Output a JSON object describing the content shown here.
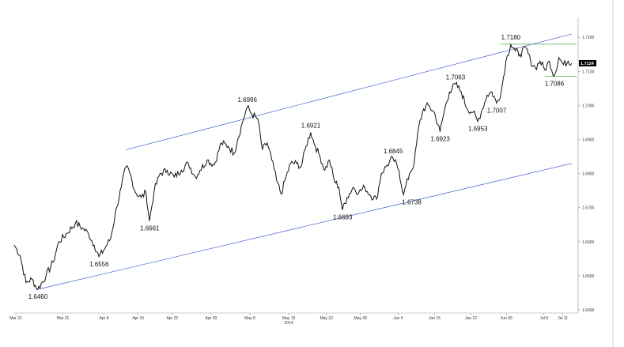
{
  "chart_data": {
    "type": "line",
    "title": "",
    "xlabel": "",
    "ylabel": "",
    "year_label": "2014",
    "ylim": [
      1.64,
      1.724
    ],
    "y_ticks": [
      "1.7200",
      "1.7100",
      "1.7000",
      "1.6900",
      "1.6800",
      "1.6700",
      "1.6600",
      "1.6500",
      "1.6400"
    ],
    "last_price": "1.7124",
    "x_ticks": [
      "Mar 21",
      "Mar 31",
      "Apr 8",
      "Apr 15",
      "Apr 22",
      "Apr 30",
      "May 8",
      "May 15",
      "May 23",
      "May 30",
      "Jun 6",
      "Jun 15",
      "Jun 22",
      "Jun 30",
      "Jul 8",
      "Jul 11"
    ],
    "series": [
      {
        "values": [
          [
            0,
            1.659
          ],
          [
            5,
            1.656
          ],
          [
            10,
            1.648
          ],
          [
            15,
            1.649
          ],
          [
            20,
            1.646
          ],
          [
            27,
            1.65
          ],
          [
            33,
            1.654
          ],
          [
            38,
            1.66
          ],
          [
            45,
            1.6625
          ],
          [
            52,
            1.6655
          ],
          [
            58,
            1.664
          ],
          [
            63,
            1.6625
          ],
          [
            68,
            1.659
          ],
          [
            72,
            1.6556
          ],
          [
            76,
            1.6575
          ],
          [
            82,
            1.661
          ],
          [
            87,
            1.67
          ],
          [
            91,
            1.676
          ],
          [
            95,
            1.682
          ],
          [
            98,
            1.6805
          ],
          [
            103,
            1.6745
          ],
          [
            108,
            1.673
          ],
          [
            112,
            1.6745
          ],
          [
            115,
            1.6661
          ],
          [
            119,
            1.675
          ],
          [
            124,
            1.68
          ],
          [
            130,
            1.681
          ],
          [
            136,
            1.679
          ],
          [
            142,
            1.681
          ],
          [
            148,
            1.683
          ],
          [
            154,
            1.679
          ],
          [
            158,
            1.681
          ],
          [
            164,
            1.684
          ],
          [
            170,
            1.6825
          ],
          [
            176,
            1.689
          ],
          [
            182,
            1.688
          ],
          [
            187,
            1.686
          ],
          [
            190,
            1.69
          ],
          [
            194,
            1.695
          ],
          [
            198,
            1.6996
          ],
          [
            202,
            1.6975
          ],
          [
            207,
            1.696
          ],
          [
            211,
            1.687
          ],
          [
            215,
            1.689
          ],
          [
            219,
            1.684
          ],
          [
            223,
            1.678
          ],
          [
            227,
            1.674
          ],
          [
            231,
            1.679
          ],
          [
            235,
            1.683
          ],
          [
            240,
            1.683
          ],
          [
            244,
            1.682
          ],
          [
            248,
            1.688
          ],
          [
            252,
            1.6921
          ],
          [
            256,
            1.688
          ],
          [
            260,
            1.685
          ],
          [
            264,
            1.681
          ],
          [
            268,
            1.684
          ],
          [
            272,
            1.678
          ],
          [
            276,
            1.676
          ],
          [
            279,
            1.6693
          ],
          [
            283,
            1.673
          ],
          [
            288,
            1.676
          ],
          [
            293,
            1.6745
          ],
          [
            298,
            1.676
          ],
          [
            303,
            1.6735
          ],
          [
            308,
            1.6725
          ],
          [
            312,
            1.68
          ],
          [
            317,
            1.6825
          ],
          [
            322,
            1.6845
          ],
          [
            327,
            1.681
          ],
          [
            331,
            1.6738
          ],
          [
            336,
            1.68
          ],
          [
            340,
            1.683
          ],
          [
            344,
            1.694
          ],
          [
            348,
            1.699
          ],
          [
            352,
            1.7
          ],
          [
            357,
            1.698
          ],
          [
            362,
            1.6923
          ],
          [
            366,
            1.699
          ],
          [
            370,
            1.704
          ],
          [
            375,
            1.7063
          ],
          [
            380,
            1.704
          ],
          [
            385,
            1.699
          ],
          [
            390,
            1.698
          ],
          [
            394,
            1.6953
          ],
          [
            398,
            1.699
          ],
          [
            402,
            1.703
          ],
          [
            406,
            1.704
          ],
          [
            410,
            1.7007
          ],
          [
            414,
            1.704
          ],
          [
            418,
            1.713
          ],
          [
            422,
            1.718
          ],
          [
            426,
            1.716
          ],
          [
            430,
            1.715
          ],
          [
            435,
            1.717
          ],
          [
            439,
            1.713
          ],
          [
            443,
            1.711
          ],
          [
            447,
            1.713
          ],
          [
            451,
            1.7105
          ],
          [
            455,
            1.713
          ],
          [
            459,
            1.7086
          ],
          [
            463,
            1.714
          ],
          [
            467,
            1.712
          ],
          [
            471,
            1.713
          ],
          [
            474,
            1.7124
          ]
        ]
      }
    ],
    "annotations": [
      {
        "text": "1.6460",
        "x": 20,
        "y": 1.646
      },
      {
        "text": "1.6556",
        "x": 72,
        "y": 1.6556
      },
      {
        "text": "1.6661",
        "x": 115,
        "y": 1.6661
      },
      {
        "text": "1.6996",
        "x": 198,
        "y": 1.6996
      },
      {
        "text": "1.6921",
        "x": 252,
        "y": 1.6921
      },
      {
        "text": "1.6693",
        "x": 279,
        "y": 1.6693
      },
      {
        "text": "1.6845",
        "x": 322,
        "y": 1.6845
      },
      {
        "text": "1.6738",
        "x": 331,
        "y": 1.6738
      },
      {
        "text": "1.7063",
        "x": 375,
        "y": 1.7063
      },
      {
        "text": "1.6923",
        "x": 362,
        "y": 1.6923
      },
      {
        "text": "1.6953",
        "x": 394,
        "y": 1.6953
      },
      {
        "text": "1.7007",
        "x": 410,
        "y": 1.7007
      },
      {
        "text": "1.7180",
        "x": 422,
        "y": 1.718
      },
      {
        "text": "1.7086",
        "x": 459,
        "y": 1.7086
      }
    ],
    "channel_upper": [
      [
        95,
        1.687
      ],
      [
        474,
        1.721
      ]
    ],
    "channel_lower": [
      [
        20,
        1.646
      ],
      [
        474,
        1.683
      ]
    ],
    "range_lines": [
      1.718,
      1.7086
    ],
    "colors": {
      "price": "#111111",
      "channel": "#3a5bd0",
      "range": "#4caf50",
      "badge": "#000000"
    }
  }
}
